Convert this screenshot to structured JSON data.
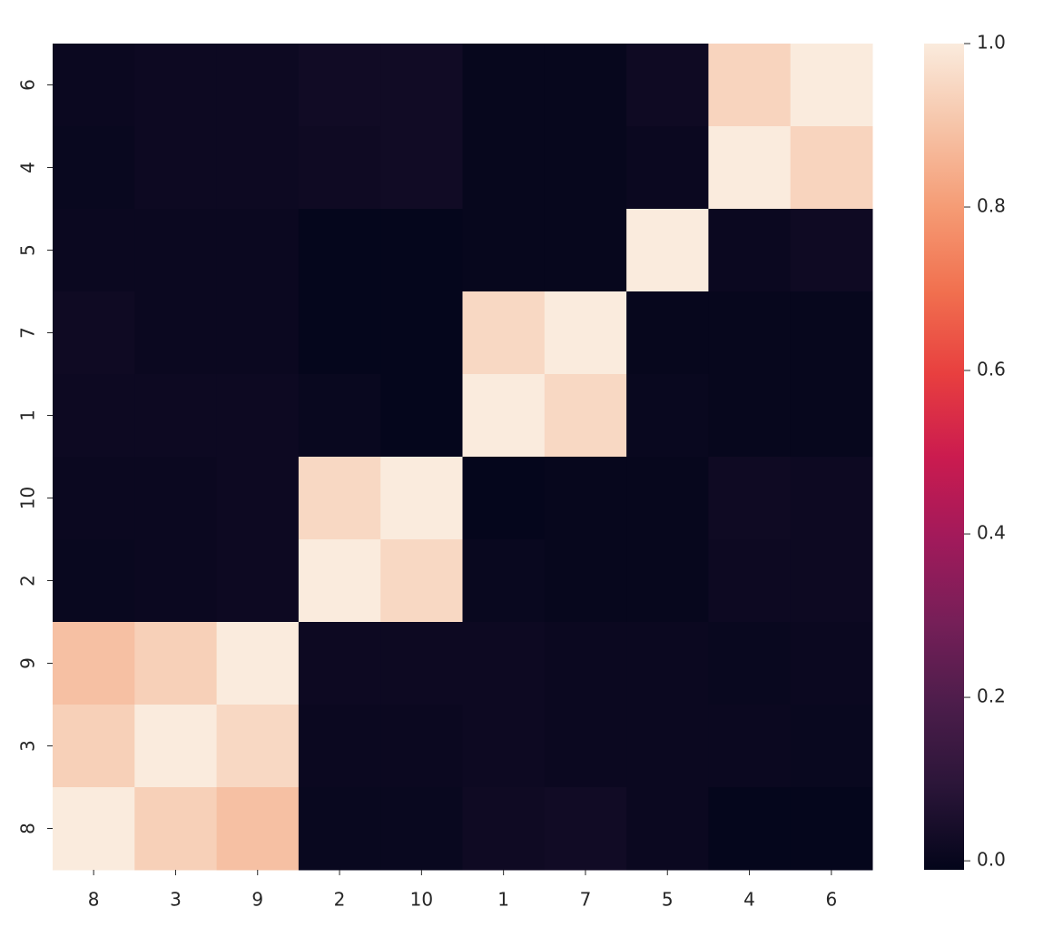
{
  "chart_data": {
    "type": "heatmap",
    "x": [
      "8",
      "3",
      "9",
      "2",
      "10",
      "1",
      "7",
      "5",
      "4",
      "6"
    ],
    "y": [
      "6",
      "4",
      "5",
      "7",
      "1",
      "10",
      "2",
      "9",
      "3",
      "8"
    ],
    "values": [
      [
        0.01,
        0.015,
        0.015,
        0.025,
        0.025,
        0.0,
        0.0,
        0.02,
        0.94,
        1.0
      ],
      [
        0.005,
        0.015,
        0.015,
        0.02,
        0.025,
        0.0,
        0.0,
        0.01,
        1.0,
        0.94
      ],
      [
        0.01,
        0.01,
        0.01,
        -0.005,
        -0.005,
        0.0,
        0.0,
        1.0,
        0.01,
        0.02
      ],
      [
        0.02,
        0.01,
        0.01,
        -0.005,
        -0.005,
        0.95,
        1.0,
        0.0,
        0.0,
        0.0
      ],
      [
        0.015,
        0.015,
        0.015,
        0.005,
        -0.005,
        1.0,
        0.95,
        0.005,
        0.0,
        0.0
      ],
      [
        0.01,
        0.01,
        0.015,
        0.95,
        1.0,
        -0.005,
        0.0,
        0.0,
        0.02,
        0.015
      ],
      [
        0.005,
        0.01,
        0.015,
        1.0,
        0.95,
        0.005,
        0.0,
        0.0,
        0.015,
        0.015
      ],
      [
        0.89,
        0.93,
        1.0,
        0.015,
        0.015,
        0.015,
        0.01,
        0.01,
        0.005,
        0.01
      ],
      [
        0.93,
        1.0,
        0.95,
        0.01,
        0.01,
        0.015,
        0.01,
        0.01,
        0.01,
        0.005
      ],
      [
        1.0,
        0.93,
        0.89,
        0.005,
        0.005,
        0.02,
        0.025,
        0.01,
        -0.005,
        -0.005
      ]
    ],
    "colormap": [
      "#03051a",
      "#2a1538",
      "#4c1d4b",
      "#761f58",
      "#a11a5b",
      "#cb1b4f",
      "#e83f3f",
      "#f1704f",
      "#f59b74",
      "#f6c4a8",
      "#faebdd"
    ],
    "clim": [
      -0.011,
      1.0
    ],
    "cticks": [
      {
        "value": 0,
        "label": "0.0"
      },
      0.2,
      0.4,
      0.6,
      0.8,
      {
        "value": 1,
        "label": "1.0"
      }
    ]
  }
}
